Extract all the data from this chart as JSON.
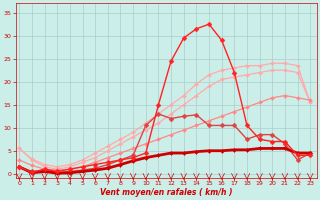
{
  "background_color": "#cceee8",
  "grid_color": "#aacccc",
  "x_labels": [
    0,
    1,
    2,
    3,
    4,
    5,
    6,
    7,
    8,
    9,
    10,
    11,
    12,
    13,
    14,
    15,
    16,
    17,
    18,
    19,
    20,
    21,
    22,
    23
  ],
  "xlabel": "Vent moyen/en rafales ( km/h )",
  "ylabel_ticks": [
    0,
    5,
    10,
    15,
    20,
    25,
    30,
    35
  ],
  "ylim": [
    -1,
    37
  ],
  "xlim": [
    -0.3,
    23.5
  ],
  "lines": [
    {
      "color": "#ffaaaa",
      "linewidth": 0.9,
      "marker": "D",
      "markersize": 2.0,
      "y": [
        5.5,
        3.2,
        2.0,
        1.5,
        2.0,
        3.0,
        4.5,
        6.0,
        7.5,
        9.0,
        11.0,
        13.0,
        15.0,
        17.0,
        19.5,
        21.5,
        22.5,
        23.0,
        23.5,
        23.5,
        24.0,
        24.0,
        23.5,
        15.5
      ]
    },
    {
      "color": "#ffaaaa",
      "linewidth": 0.9,
      "marker": "D",
      "markersize": 2.0,
      "y": [
        5.5,
        3.0,
        1.5,
        1.0,
        1.5,
        2.5,
        3.5,
        5.0,
        6.5,
        8.0,
        9.5,
        11.0,
        13.0,
        15.0,
        17.0,
        19.0,
        20.5,
        21.0,
        21.5,
        22.0,
        22.5,
        22.5,
        22.0,
        15.5
      ]
    },
    {
      "color": "#ff8888",
      "linewidth": 0.9,
      "marker": "D",
      "markersize": 2.0,
      "y": [
        3.0,
        1.8,
        1.0,
        0.8,
        1.0,
        1.5,
        2.5,
        3.5,
        4.5,
        5.5,
        6.5,
        7.5,
        8.5,
        9.5,
        10.5,
        11.5,
        12.5,
        13.5,
        14.5,
        15.5,
        16.5,
        17.0,
        16.5,
        16.0
      ]
    },
    {
      "color": "#dd4444",
      "linewidth": 1.0,
      "marker": "D",
      "markersize": 2.5,
      "y": [
        1.5,
        0.5,
        0.8,
        0.3,
        0.5,
        0.8,
        1.2,
        2.0,
        3.0,
        4.0,
        10.5,
        13.0,
        12.0,
        12.5,
        12.8,
        10.5,
        10.5,
        10.5,
        7.5,
        8.5,
        8.5,
        6.5,
        3.0,
        4.5
      ]
    },
    {
      "color": "#cc0000",
      "linewidth": 2.0,
      "marker": "D",
      "markersize": 2.0,
      "y": [
        1.5,
        0.2,
        0.5,
        0.1,
        0.2,
        0.5,
        0.8,
        1.2,
        2.0,
        2.8,
        3.5,
        4.0,
        4.5,
        4.5,
        4.8,
        5.0,
        5.0,
        5.2,
        5.2,
        5.5,
        5.5,
        5.5,
        4.5,
        4.5
      ]
    },
    {
      "color": "#ff2222",
      "linewidth": 1.0,
      "marker": "D",
      "markersize": 2.5,
      "y": [
        1.5,
        0.3,
        1.0,
        0.5,
        1.0,
        1.5,
        2.0,
        2.5,
        3.0,
        3.5,
        4.5,
        15.0,
        24.5,
        29.5,
        31.5,
        32.5,
        29.0,
        22.0,
        10.5,
        7.5,
        7.0,
        7.0,
        4.0,
        4.0
      ]
    }
  ]
}
